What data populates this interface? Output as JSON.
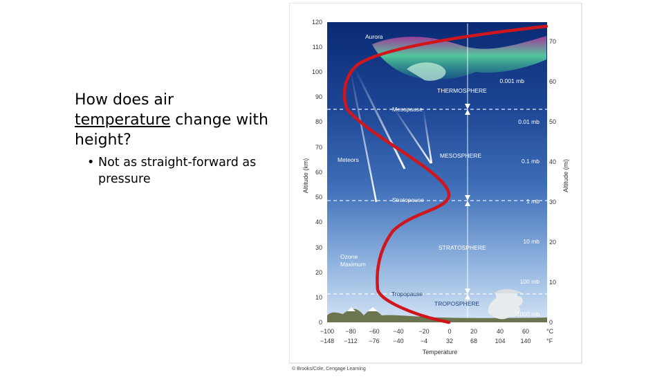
{
  "slide": {
    "question_part1": "How does air",
    "question_underlined": "temperature",
    "question_part2": "change with height?",
    "bullet": "Not as straight-forward as pressure"
  },
  "figure": {
    "labels": {
      "aurora": "Aurora",
      "thermosphere": "THERMOSPHERE",
      "mesopause": "Mesopause",
      "meteors": "Meteors",
      "mesosphere": "MESOSPHERE",
      "stratopause": "Stratopause",
      "stratosphere": "STRATOSPHERE",
      "ozone_1": "Ozone",
      "ozone_2": "Maximum",
      "tropopause": "Tropopause",
      "troposphere": "TROPOSPHERE"
    },
    "left_axis_label": "Altitude (km)",
    "right_axis_label": "Altitude (mi)",
    "x_axis_label": "Temperature",
    "credit": "© Brooks/Cole, Cengage Learning",
    "left_ticks": [
      "120",
      "110",
      "100",
      "90",
      "80",
      "70",
      "60",
      "50",
      "40",
      "30",
      "20",
      "10",
      "0"
    ],
    "right_ticks": [
      "70",
      "60",
      "50",
      "40",
      "30",
      "20",
      "10",
      "0"
    ],
    "celsius_ticks": [
      "−100",
      "−80",
      "−60",
      "−40",
      "−20",
      "0",
      "20",
      "40",
      "60"
    ],
    "fahrenheit_ticks": [
      "−148",
      "−112",
      "−76",
      "−40",
      "−4",
      "32",
      "68",
      "104",
      "140"
    ],
    "unit_c": "°C",
    "unit_f": "°F",
    "pressures": [
      "0.001 mb",
      "0.01 mb",
      "0.1 mb",
      "1 mb",
      "10 mb",
      "100 mb",
      "1000 mb"
    ],
    "colors": {
      "sky_top": "#0d2f7a",
      "sky_bottom": "#c7dcf2",
      "curve": "#d0161d",
      "aurora": "#49d39a"
    }
  }
}
